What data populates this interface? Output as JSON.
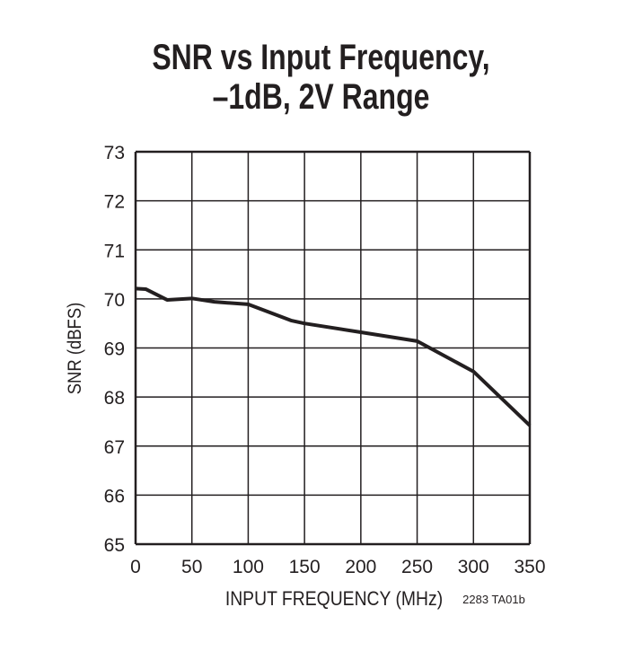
{
  "chart_data": {
    "type": "line",
    "title_line1": "SNR vs Input Frequency,",
    "title_line2": "–1dB, 2V Range",
    "xlabel": "INPUT FREQUENCY (MHz)",
    "ylabel": "SNR (dBFS)",
    "xlim": [
      0,
      350
    ],
    "ylim": [
      65,
      73
    ],
    "xticks": [
      0,
      50,
      100,
      150,
      200,
      250,
      300,
      350
    ],
    "yticks": [
      65,
      66,
      67,
      68,
      69,
      70,
      71,
      72,
      73
    ],
    "grid": true,
    "note": "2283 TA01b",
    "line_color": "#231f20",
    "series": [
      {
        "x": [
          0,
          9,
          28,
          50,
          70,
          100,
          138,
          150,
          200,
          250,
          300,
          350
        ],
        "y": [
          70.21,
          70.2,
          69.98,
          70.01,
          69.94,
          69.89,
          69.56,
          69.5,
          69.32,
          69.14,
          68.52,
          67.42
        ]
      }
    ]
  }
}
